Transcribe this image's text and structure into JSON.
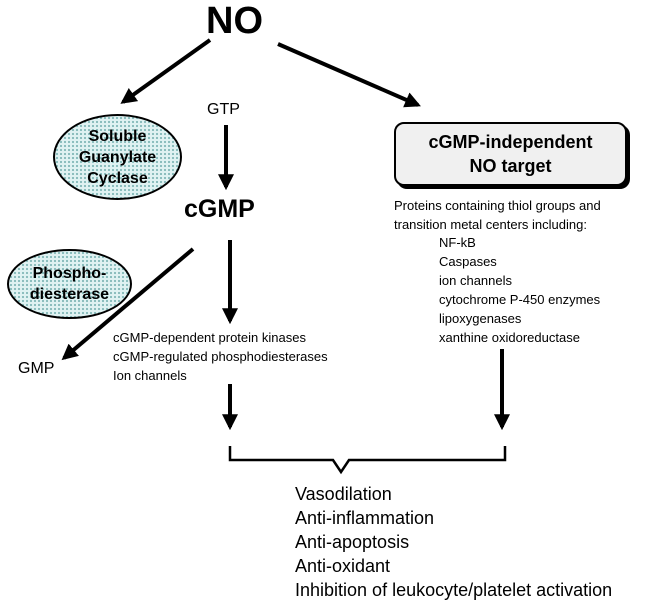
{
  "nodes": {
    "no": "NO",
    "gtp": "GTP",
    "cgmp": "cGMP",
    "gmp": "GMP"
  },
  "soluble_guanylate_cyclase": [
    "Soluble",
    "Guanylate",
    "Cyclase"
  ],
  "phosphodiesterase": [
    "Phospho-",
    "diesterase"
  ],
  "independent_target": [
    "cGMP-independent",
    "NO target"
  ],
  "protein_targets": {
    "intro": [
      "Proteins containing thiol groups and",
      "transition metal centers including:"
    ],
    "items": [
      "NF-kB",
      "Caspases",
      "ion channels",
      "cytochrome P-450 enzymes",
      "lipoxygenases",
      "xanthine oxidoreductase"
    ]
  },
  "cgmp_targets": [
    "cGMP-dependent protein kinases",
    "cGMP-regulated phosphodiesterases",
    "Ion channels"
  ],
  "effects": [
    "Vasodilation",
    "Anti-inflammation",
    "Anti-apoptosis",
    "Anti-oxidant",
    "Inhibition of leukocyte/platelet activation"
  ],
  "colors": {
    "ellipse_fill": "#dff2f2",
    "ellipse_dots": "#7fb6b6",
    "box_fill": "#f0f0f0",
    "line": "#000000"
  }
}
